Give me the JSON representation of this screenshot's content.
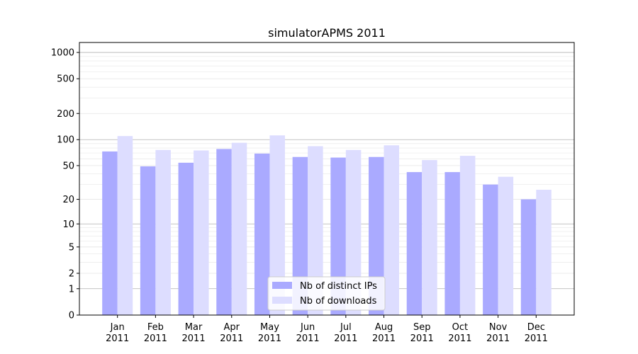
{
  "chart_data": {
    "type": "bar",
    "title": "simulatorAPMS 2011",
    "xlabel": "",
    "ylabel": "",
    "y_scale": "symlog",
    "ylim": [
      0,
      1300
    ],
    "y_ticks": [
      {
        "value": 0,
        "label": "0"
      },
      {
        "value": 1,
        "label": "1"
      },
      {
        "value": 2,
        "label": "2"
      },
      {
        "value": 5,
        "label": "5"
      },
      {
        "value": 10,
        "label": "10"
      },
      {
        "value": 20,
        "label": "20"
      },
      {
        "value": 50,
        "label": "50"
      },
      {
        "value": 100,
        "label": "100"
      },
      {
        "value": 200,
        "label": "200"
      },
      {
        "value": 500,
        "label": "500"
      },
      {
        "value": 1000,
        "label": "1000"
      }
    ],
    "categories": [
      {
        "month": "Jan",
        "year": "2011"
      },
      {
        "month": "Feb",
        "year": "2011"
      },
      {
        "month": "Mar",
        "year": "2011"
      },
      {
        "month": "Apr",
        "year": "2011"
      },
      {
        "month": "May",
        "year": "2011"
      },
      {
        "month": "Jun",
        "year": "2011"
      },
      {
        "month": "Jul",
        "year": "2011"
      },
      {
        "month": "Aug",
        "year": "2011"
      },
      {
        "month": "Sep",
        "year": "2011"
      },
      {
        "month": "Oct",
        "year": "2011"
      },
      {
        "month": "Nov",
        "year": "2011"
      },
      {
        "month": "Dec",
        "year": "2011"
      }
    ],
    "series": [
      {
        "name": "Nb of distinct IPs",
        "color": "#aaaaff",
        "values": [
          73,
          49,
          54,
          78,
          69,
          63,
          62,
          63,
          42,
          42,
          30,
          20
        ]
      },
      {
        "name": "Nb of downloads",
        "color": "#ddddff",
        "values": [
          110,
          76,
          75,
          92,
          112,
          84,
          76,
          86,
          58,
          65,
          37,
          26
        ]
      }
    ],
    "grid": true,
    "legend_position": "bottom-center"
  }
}
